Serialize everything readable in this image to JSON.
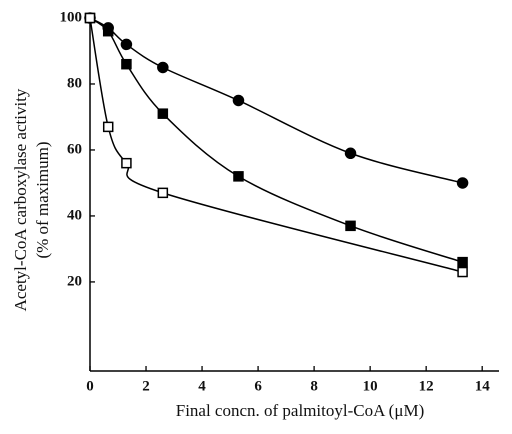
{
  "chart_data": {
    "type": "scatter",
    "xlabel": "Final concn. of palmitoyl-CoA (μM)",
    "ylabel": [
      "Acetyl-CoA carboxylase activity",
      "(% of maximum)"
    ],
    "xlim": [
      0,
      14.6
    ],
    "xticks": [
      0,
      2,
      4,
      6,
      8,
      10,
      12,
      14
    ],
    "ylim": [
      -7,
      100
    ],
    "yticks": [
      20,
      40,
      60,
      80,
      100
    ],
    "series": [
      {
        "marker": "circle",
        "filled": true,
        "color": "#000000",
        "x": [
          0,
          0.65,
          1.3,
          2.6,
          5.3,
          9.3,
          13.3
        ],
        "values": [
          100,
          97,
          92,
          85,
          75,
          59,
          50
        ]
      },
      {
        "marker": "square",
        "filled": true,
        "color": "#000000",
        "x": [
          0,
          0.65,
          1.3,
          2.6,
          5.3,
          9.3,
          13.3
        ],
        "values": [
          100,
          96,
          86,
          71,
          52,
          37,
          26
        ]
      },
      {
        "marker": "square",
        "filled": false,
        "color": "#000000",
        "x": [
          0,
          0.65,
          1.3,
          2.6,
          13.3
        ],
        "values": [
          100,
          67,
          56,
          47,
          23
        ]
      }
    ]
  }
}
